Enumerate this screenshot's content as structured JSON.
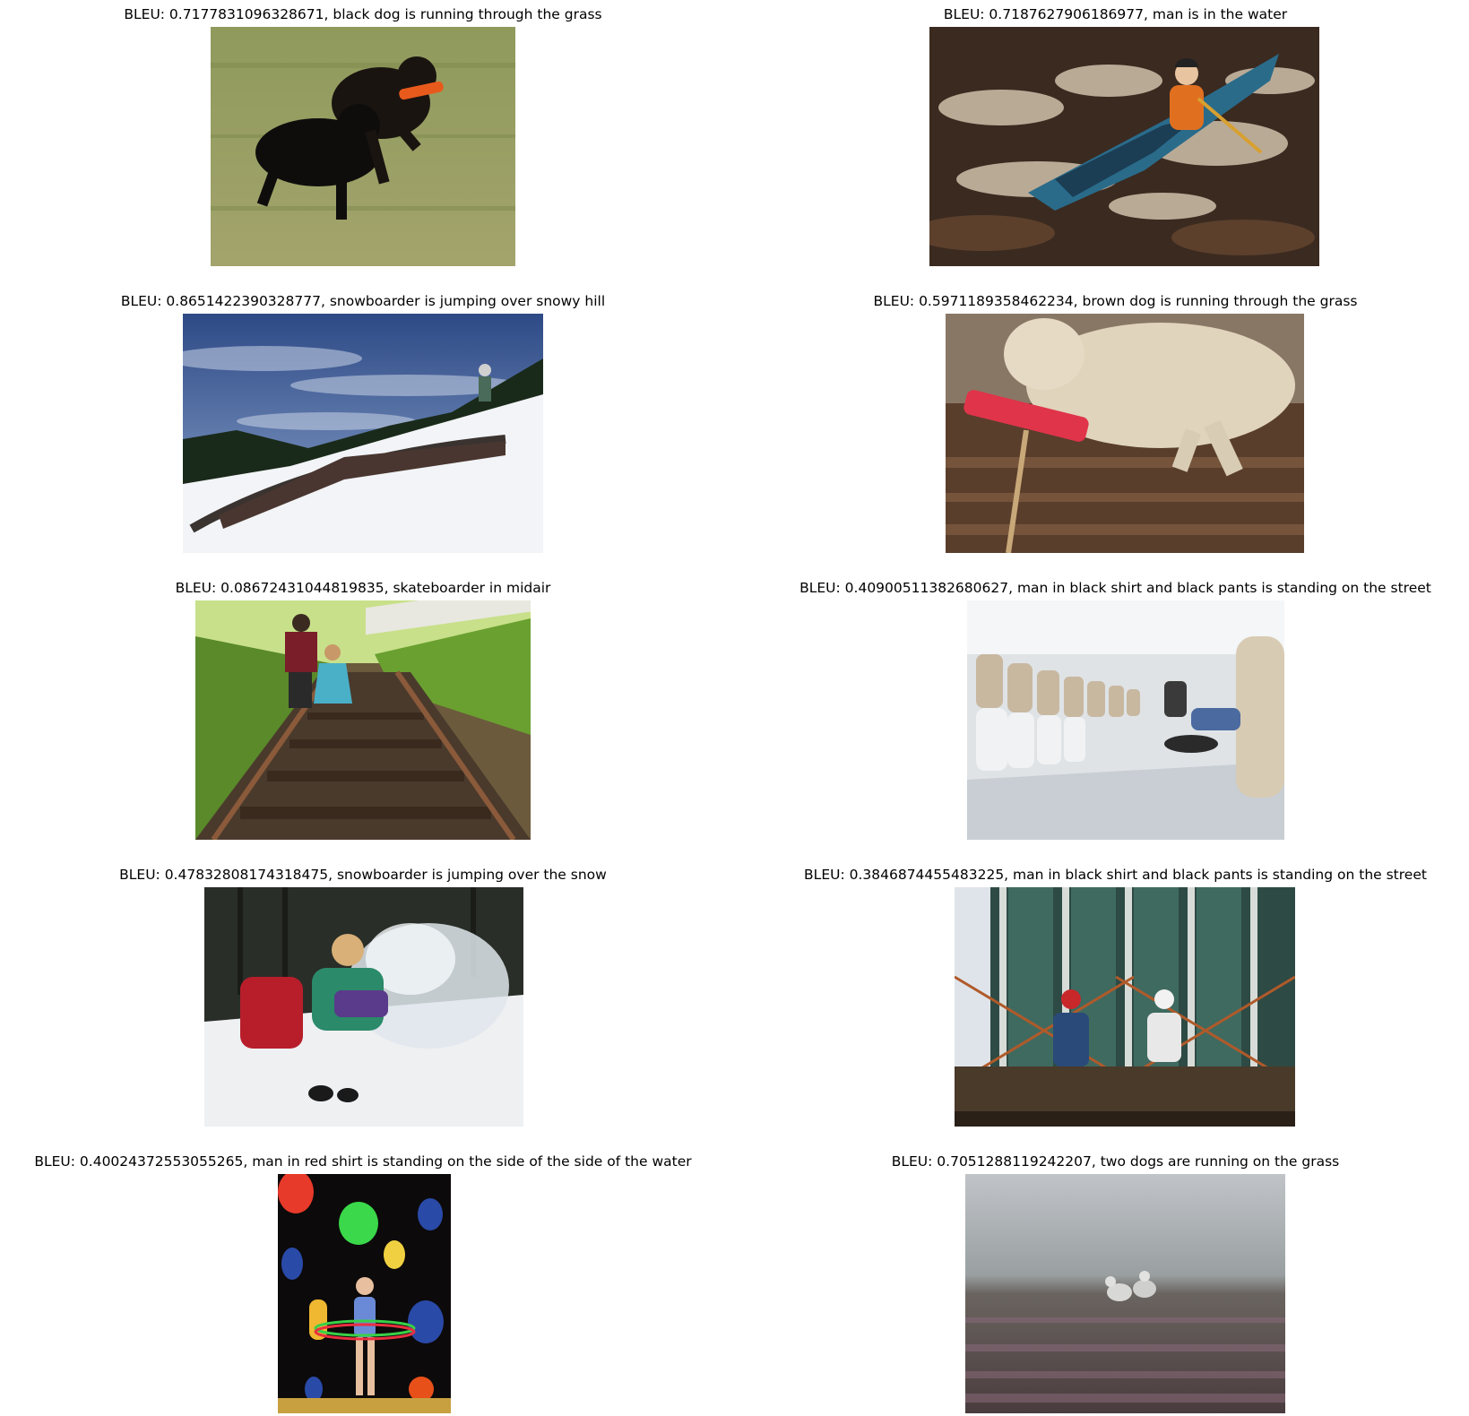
{
  "figure": {
    "panels": [
      {
        "caption": "BLEU: 0.7177831096328671, black dog is running through the grass",
        "scene": "two-black-dogs-grass"
      },
      {
        "caption": "BLEU: 0.7187627906186977, man is in the water",
        "scene": "kayaker-whitewater"
      },
      {
        "caption": "BLEU: 0.8651422390328777, snowboarder is jumping over snowy hill",
        "scene": "snowboarder-rail"
      },
      {
        "caption": "BLEU: 0.5971189358462234, brown dog is running through the grass",
        "scene": "dog-with-broom"
      },
      {
        "caption": "BLEU: 0.08672431044819835, skateboarder in midair",
        "scene": "man-girl-railroad-tracks"
      },
      {
        "caption": "BLEU: 0.40900511382680627, man in black shirt and black pants is standing on the street",
        "scene": "ferry-interior-seats"
      },
      {
        "caption": "BLEU: 0.47832808174318475, snowboarder is jumping over the snow",
        "scene": "woman-snow-smoke"
      },
      {
        "caption": "BLEU: 0.3846874455483225, man in black shirt and black pants is standing on the street",
        "scene": "workers-on-beam"
      },
      {
        "caption": "BLEU: 0.40024372553055265, man in red shirt is standing on the side of the side of the water",
        "scene": "girl-hula-hoop-balloons"
      },
      {
        "caption": "BLEU: 0.7051288119242207, two dogs are running on the grass",
        "scene": "two-dogs-foggy-heather"
      }
    ]
  }
}
